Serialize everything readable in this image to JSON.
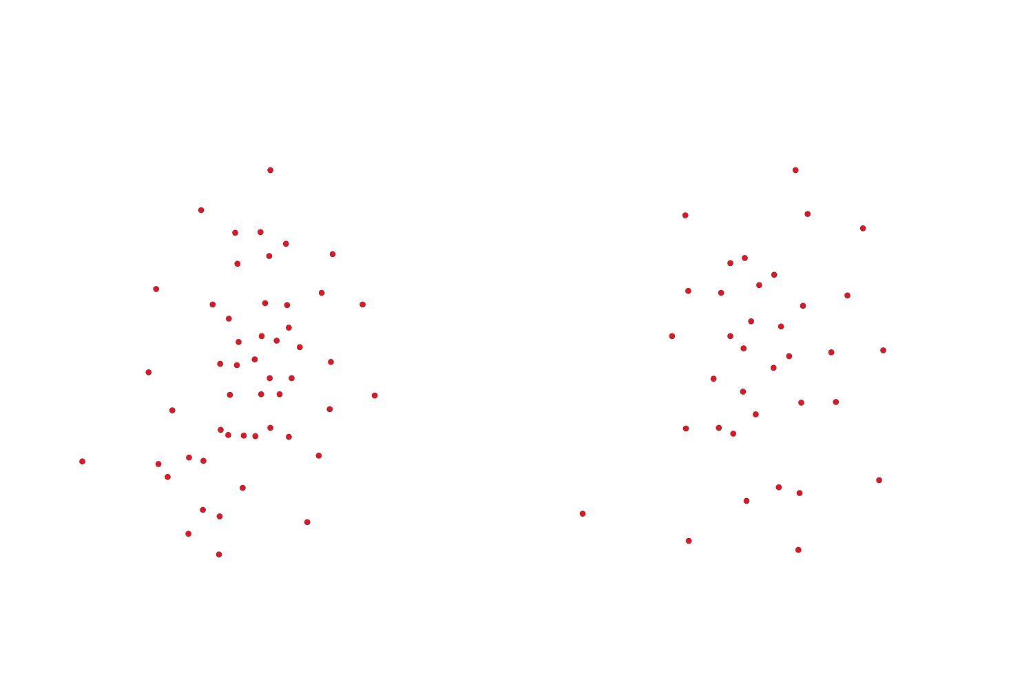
{
  "colors": {
    "background": "#ffffff",
    "point_fill": "#d8192a",
    "point_stroke": "#7a0f14"
  },
  "chart_data": [
    {
      "type": "scatter",
      "title": "",
      "xlabel": "",
      "ylabel": "",
      "grid": false,
      "axes_visible": false,
      "xlim": [
        -4,
        4
      ],
      "ylim": [
        -4,
        4
      ],
      "series": [
        {
          "values": [
            {
              "x": 0.15,
              "y": 2.7
            },
            {
              "x": -1.05,
              "y": 2.08
            },
            {
              "x": -0.46,
              "y": 1.73
            },
            {
              "x": -0.02,
              "y": 1.74
            },
            {
              "x": 0.42,
              "y": 1.56
            },
            {
              "x": 1.23,
              "y": 1.4
            },
            {
              "x": -0.42,
              "y": 1.25
            },
            {
              "x": 0.13,
              "y": 1.37
            },
            {
              "x": -1.83,
              "y": 0.86
            },
            {
              "x": 1.04,
              "y": 0.8
            },
            {
              "x": 0.06,
              "y": 0.64
            },
            {
              "x": -0.85,
              "y": 0.62
            },
            {
              "x": 0.44,
              "y": 0.61
            },
            {
              "x": 1.75,
              "y": 0.62
            },
            {
              "x": -0.57,
              "y": 0.4
            },
            {
              "x": 0.47,
              "y": 0.26
            },
            {
              "x": -0.4,
              "y": 0.04
            },
            {
              "x": 0.0,
              "y": 0.13
            },
            {
              "x": 0.26,
              "y": 0.06
            },
            {
              "x": 0.66,
              "y": -0.04
            },
            {
              "x": -0.72,
              "y": -0.3
            },
            {
              "x": -0.43,
              "y": -0.32
            },
            {
              "x": -0.12,
              "y": -0.23
            },
            {
              "x": 1.2,
              "y": -0.27
            },
            {
              "x": -1.96,
              "y": -0.43
            },
            {
              "x": 0.14,
              "y": -0.52
            },
            {
              "x": 0.52,
              "y": -0.52
            },
            {
              "x": 1.96,
              "y": -0.79
            },
            {
              "x": -0.55,
              "y": -0.78
            },
            {
              "x": -0.01,
              "y": -0.77
            },
            {
              "x": 0.31,
              "y": -0.77
            },
            {
              "x": 1.18,
              "y": -1.0
            },
            {
              "x": -1.55,
              "y": -1.02
            },
            {
              "x": -0.71,
              "y": -1.32
            },
            {
              "x": 0.15,
              "y": -1.29
            },
            {
              "x": -0.58,
              "y": -1.4
            },
            {
              "x": -0.31,
              "y": -1.41
            },
            {
              "x": -0.11,
              "y": -1.42
            },
            {
              "x": 0.47,
              "y": -1.43
            },
            {
              "x": 0.99,
              "y": -1.72
            },
            {
              "x": -1.26,
              "y": -1.75
            },
            {
              "x": -1.01,
              "y": -1.8
            },
            {
              "x": -3.11,
              "y": -1.81
            },
            {
              "x": -1.79,
              "y": -1.85
            },
            {
              "x": -1.63,
              "y": -2.05
            },
            {
              "x": -0.33,
              "y": -2.22
            },
            {
              "x": -1.02,
              "y": -2.56
            },
            {
              "x": -0.73,
              "y": -2.66
            },
            {
              "x": 0.79,
              "y": -2.75
            },
            {
              "x": -1.27,
              "y": -2.93
            },
            {
              "x": -0.74,
              "y": -3.25
            }
          ]
        }
      ]
    },
    {
      "type": "scatter",
      "title": "",
      "xlabel": "",
      "ylabel": "",
      "grid": false,
      "axes_visible": false,
      "xlim": [
        -4,
        4
      ],
      "ylim": [
        -4,
        4
      ],
      "series": [
        {
          "values": [
            {
              "x": 0.36,
              "y": 2.7
            },
            {
              "x": -1.55,
              "y": 2.0
            },
            {
              "x": 0.57,
              "y": 2.02
            },
            {
              "x": 1.53,
              "y": 1.8
            },
            {
              "x": -0.52,
              "y": 1.34
            },
            {
              "x": -0.77,
              "y": 1.26
            },
            {
              "x": -0.01,
              "y": 1.08
            },
            {
              "x": -0.27,
              "y": 0.92
            },
            {
              "x": 1.26,
              "y": 0.76
            },
            {
              "x": -1.5,
              "y": 0.83
            },
            {
              "x": -0.93,
              "y": 0.8
            },
            {
              "x": 0.49,
              "y": 0.6
            },
            {
              "x": -0.41,
              "y": 0.36
            },
            {
              "x": 0.11,
              "y": 0.28
            },
            {
              "x": -0.77,
              "y": 0.13
            },
            {
              "x": -1.78,
              "y": 0.13
            },
            {
              "x": 0.98,
              "y": -0.12
            },
            {
              "x": 1.88,
              "y": -0.09
            },
            {
              "x": -0.54,
              "y": -0.06
            },
            {
              "x": 0.25,
              "y": -0.18
            },
            {
              "x": -0.02,
              "y": -0.36
            },
            {
              "x": -1.06,
              "y": -0.53
            },
            {
              "x": -0.55,
              "y": -0.73
            },
            {
              "x": 0.46,
              "y": -0.9
            },
            {
              "x": 1.06,
              "y": -0.89
            },
            {
              "x": -0.33,
              "y": -1.08
            },
            {
              "x": -1.54,
              "y": -1.3
            },
            {
              "x": -0.97,
              "y": -1.29
            },
            {
              "x": -0.72,
              "y": -1.38
            },
            {
              "x": 1.81,
              "y": -2.1
            },
            {
              "x": 0.07,
              "y": -2.21
            },
            {
              "x": 0.43,
              "y": -2.3
            },
            {
              "x": -0.49,
              "y": -2.42
            },
            {
              "x": -3.33,
              "y": -2.62
            },
            {
              "x": -1.49,
              "y": -3.04
            },
            {
              "x": 0.41,
              "y": -3.18
            }
          ]
        }
      ]
    }
  ]
}
